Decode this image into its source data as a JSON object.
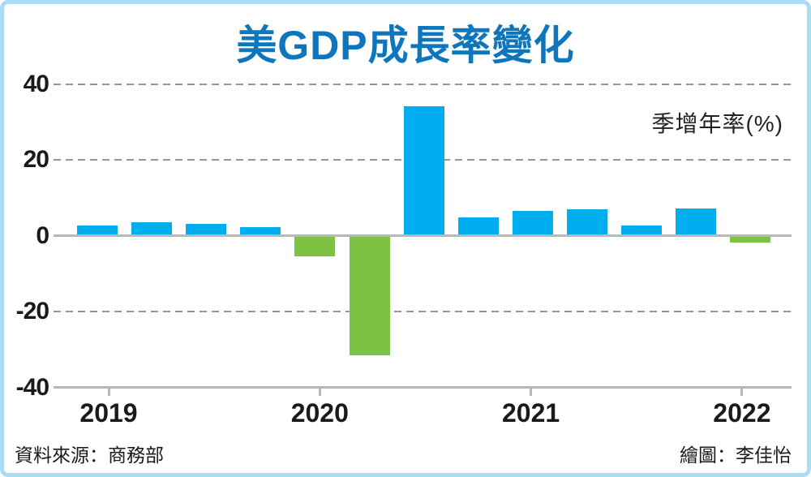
{
  "title": {
    "text": "美GDP成長率變化",
    "color": "#0e76bc"
  },
  "unit_label": "季增年率(%)",
  "footer": {
    "source": "資料來源：商務部",
    "credit": "繪圖：李佳怡"
  },
  "colors": {
    "positive_bar": "#00aeef",
    "negative_bar": "#7dc242",
    "title_blue": "#0e76bc",
    "frame_border": "#a9ddf6",
    "grid_gray": "#969696",
    "axis_gray": "#b8b8b8"
  },
  "chart_data": {
    "type": "bar",
    "title": "美GDP成長率變化",
    "ylabel": "季增年率(%)",
    "x": [
      "2019 Q1",
      "2019 Q2",
      "2019 Q3",
      "2019 Q4",
      "2020 Q1",
      "2020 Q2",
      "2020 Q3",
      "2020 Q4",
      "2021 Q1",
      "2021 Q2",
      "2021 Q3",
      "2021 Q4",
      "2022 Q1"
    ],
    "values": [
      2.4,
      3.2,
      2.8,
      1.9,
      -5.1,
      -31.2,
      33.8,
      4.5,
      6.3,
      6.7,
      2.3,
      6.9,
      -1.4
    ],
    "color_rule": "positive bars #00aeef (blue), negative bars #7dc242 (green)",
    "ylim": [
      -40,
      40
    ],
    "yticks": [
      40,
      20,
      0,
      -20,
      -40
    ],
    "x_year_ticks": [
      "2019",
      "2020",
      "2021",
      "2022"
    ],
    "grid": "horizontal dashed gray at 40, 20, -20; solid gray at 0; solid gray baseline at -40 with year tick marks",
    "legend_position": "top-right (unit label only, no legend box)"
  }
}
